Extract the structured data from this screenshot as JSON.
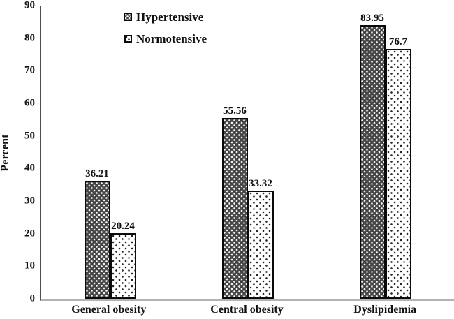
{
  "figure": {
    "background": "#ffffff",
    "text_color": "#111111",
    "y_axis_color": "#4d4d4d",
    "x_axis_color": "#b3b3b3",
    "bar_outline_color": "#0a0a0a",
    "hypertensive_fill": "#3e3e3e",
    "normotensive_fill": "#ffffff"
  },
  "chart_data": {
    "type": "bar",
    "title": "",
    "xlabel": "",
    "ylabel": "Percent",
    "categories": [
      "General obesity",
      "Central obesity",
      "Dyslipidemia"
    ],
    "series": [
      {
        "name": "Hypertensive",
        "pattern": "dark-dots-on-dark",
        "values": [
          36.21,
          55.56,
          83.95
        ],
        "labels": [
          "36.21",
          "55.56",
          "83.95"
        ]
      },
      {
        "name": "Normotensive",
        "pattern": "dark-dots-on-white",
        "values": [
          20.24,
          33.32,
          76.7
        ],
        "labels": [
          "20.24",
          "33.32",
          "76.7"
        ]
      }
    ],
    "ylim": [
      0,
      90
    ],
    "yticks": [
      0,
      10,
      20,
      30,
      40,
      50,
      60,
      70,
      80,
      90
    ],
    "grid": false,
    "legend_position": "inside-top-left",
    "value_labels_shown": true
  }
}
